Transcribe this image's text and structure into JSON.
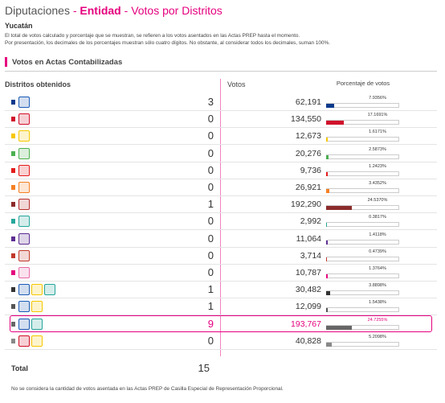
{
  "header": {
    "title": {
      "main": "Diputaciones",
      "separator": "-",
      "section": "Entidad",
      "view": "Votos por Distritos"
    },
    "state": "Yucatán",
    "notes": [
      "El total de votos calculado y porcentaje que se muestran, se refieren a los votos asentados en las Actas PREP hasta el momento.",
      "Por presentación, los decimales de los porcentajes muestran sólo cuatro dígitos. No obstante, al considerar todos los decimales, suman 100%."
    ]
  },
  "section_title": "Votos en Actas Contabilizadas",
  "table": {
    "columns": [
      "Distritos obtenidos",
      "Votos",
      "Porcentaje de votos"
    ],
    "rows": [
      {
        "color": "#0b3a8c",
        "logos": [
          "#1c5bb5"
        ],
        "districts": 3,
        "votes": {
          "value": 62191,
          "label": "62,191"
        },
        "percent": {
          "value": 7.9356,
          "label": "7.9356%"
        }
      },
      {
        "color": "#d0112b",
        "logos": [
          "#d0112b"
        ],
        "districts": 0,
        "votes": {
          "value": 134550,
          "label": "134,550"
        },
        "percent": {
          "value": 17.1691,
          "label": "17.1691%"
        }
      },
      {
        "color": "#f6c700",
        "logos": [
          "#f6c700"
        ],
        "districts": 0,
        "votes": {
          "value": 12673,
          "label": "12,673"
        },
        "percent": {
          "value": 1.6171,
          "label": "1.6171%"
        }
      },
      {
        "color": "#4caf50",
        "logos": [
          "#4caf50"
        ],
        "districts": 0,
        "votes": {
          "value": 20276,
          "label": "20,276"
        },
        "percent": {
          "value": 2.5873,
          "label": "2.5873%"
        }
      },
      {
        "color": "#e41b1b",
        "logos": [
          "#e41b1b"
        ],
        "districts": 0,
        "votes": {
          "value": 9736,
          "label": "9,736"
        },
        "percent": {
          "value": 1.2423,
          "label": "1.2423%"
        }
      },
      {
        "color": "#f58025",
        "logos": [
          "#f58025"
        ],
        "districts": 0,
        "votes": {
          "value": 26921,
          "label": "26,921"
        },
        "percent": {
          "value": 3.4352,
          "label": "3.4352%"
        }
      },
      {
        "color": "#8b2b2b",
        "logos": [
          "#b5302f"
        ],
        "districts": 1,
        "votes": {
          "value": 192290,
          "label": "192,290"
        },
        "percent": {
          "value": 24.537,
          "label": "24.5370%"
        }
      },
      {
        "color": "#26a69a",
        "logos": [
          "#26a69a"
        ],
        "districts": 0,
        "votes": {
          "value": 2992,
          "label": "2,992"
        },
        "percent": {
          "value": 0.3817,
          "label": "0.3817%"
        }
      },
      {
        "color": "#5c2d91",
        "logos": [
          "#5c2d91"
        ],
        "districts": 0,
        "votes": {
          "value": 11064,
          "label": "11,064"
        },
        "percent": {
          "value": 1.4118,
          "label": "1.4118%"
        }
      },
      {
        "color": "#c0392b",
        "logos": [
          "#c0392b"
        ],
        "districts": 0,
        "votes": {
          "value": 3714,
          "label": "3,714"
        },
        "percent": {
          "value": 0.4739,
          "label": "0.4739%"
        }
      },
      {
        "color": "#e5007e",
        "logos": [
          "#e86aa8"
        ],
        "districts": 0,
        "votes": {
          "value": 10787,
          "label": "10,787"
        },
        "percent": {
          "value": 1.3764,
          "label": "1.3764%"
        }
      },
      {
        "color": "#333333",
        "logos": [
          "#1c5bb5",
          "#f6c700",
          "#26a69a"
        ],
        "districts": 1,
        "votes": {
          "value": 30482,
          "label": "30,482"
        },
        "percent": {
          "value": 3.8898,
          "label": "3.8898%"
        }
      },
      {
        "color": "#555555",
        "logos": [
          "#1c5bb5",
          "#f6c700"
        ],
        "districts": 1,
        "votes": {
          "value": 12099,
          "label": "12,099"
        },
        "percent": {
          "value": 1.5438,
          "label": "1.5438%"
        }
      },
      {
        "color": "#666666",
        "logos": [
          "#1c5bb5",
          "#26a69a"
        ],
        "districts": 9,
        "votes": {
          "value": 193767,
          "label": "193,767"
        },
        "percent": {
          "value": 24.7255,
          "label": "24.7255%"
        },
        "highlight": true
      },
      {
        "color": "#888888",
        "logos": [
          "#d0112b",
          "#f6c700"
        ],
        "districts": 0,
        "votes": {
          "value": 40828,
          "label": "40,828"
        },
        "percent": {
          "value": 5.2098,
          "label": "5.2098%"
        }
      }
    ],
    "total": {
      "label": "Total",
      "value": 15
    }
  },
  "footnote": "No se considera la cantidad de votos asentada en las Actas PREP de Casilla Especial de Representación Proporcional."
}
